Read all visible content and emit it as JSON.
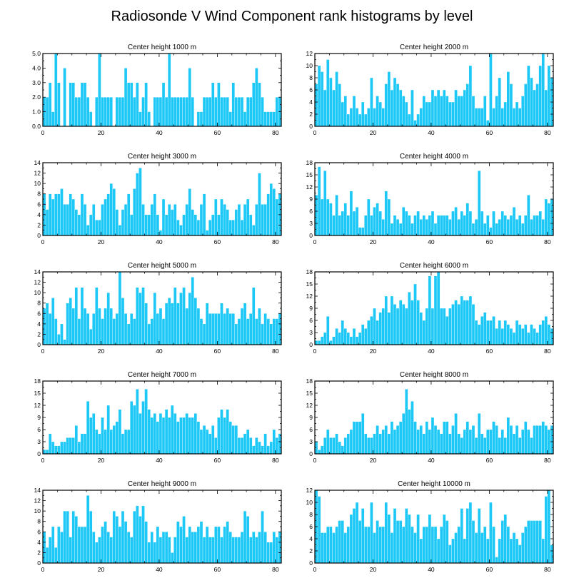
{
  "figure_title": "Radiosonde V Wind Component rank histograms by level",
  "colors": {
    "bar": "#1ec8f6",
    "frame": "#000000",
    "background": "#ffffff"
  },
  "chart_data": [
    {
      "type": "bar",
      "title": "Center height 1000 m",
      "xlim": [
        0,
        82
      ],
      "ylim": [
        0,
        5
      ],
      "xticks": [
        0,
        20,
        40,
        60,
        80
      ],
      "yticks": [
        0,
        1,
        2,
        3,
        4,
        5
      ],
      "ytick_labels": [
        "0.0",
        "1.0",
        "2.0",
        "3.0",
        "4.0",
        "5.0"
      ],
      "values": [
        2,
        2,
        3,
        1,
        5,
        3,
        0,
        4,
        0,
        3,
        3,
        2,
        2,
        3,
        3,
        2,
        1,
        0,
        2,
        5,
        2,
        2,
        2,
        2,
        0,
        2,
        2,
        2,
        4,
        3,
        3,
        2,
        3,
        1,
        2,
        3,
        1,
        0,
        2,
        2,
        2,
        3,
        2,
        5,
        2,
        2,
        2,
        2,
        2,
        2,
        4,
        2,
        0,
        1,
        1,
        2,
        2,
        2,
        3,
        2,
        3,
        2,
        2,
        2,
        1,
        3,
        2,
        2,
        2,
        1,
        2,
        2,
        3,
        4,
        3,
        2,
        1,
        1,
        1,
        1,
        2,
        2
      ]
    },
    {
      "type": "bar",
      "title": "Center height 2000 m",
      "xlim": [
        0,
        82
      ],
      "ylim": [
        0,
        12
      ],
      "xticks": [
        0,
        20,
        40,
        60,
        80
      ],
      "yticks": [
        0,
        2,
        4,
        6,
        8,
        10,
        12
      ],
      "ytick_labels": [
        "0",
        "2",
        "4",
        "6",
        "8",
        "10",
        "12"
      ],
      "values": [
        7,
        10,
        9,
        6,
        11,
        8,
        6,
        9,
        7,
        4,
        5,
        2,
        3,
        5,
        3,
        2,
        4,
        2,
        3,
        8,
        3,
        5,
        4,
        3,
        7,
        9,
        6,
        8,
        7,
        6,
        5,
        4,
        2,
        6,
        1,
        2,
        3,
        5,
        4,
        4,
        6,
        5,
        6,
        5,
        6,
        5,
        4,
        4,
        6,
        5,
        5,
        6,
        7,
        10,
        5,
        3,
        3,
        3,
        5,
        1,
        12,
        3,
        5,
        8,
        3,
        4,
        9,
        7,
        3,
        4,
        3,
        5,
        7,
        10,
        8,
        6,
        7,
        10,
        12,
        6,
        10,
        8
      ]
    },
    {
      "type": "bar",
      "title": "Center height 3000 m",
      "xlim": [
        0,
        82
      ],
      "ylim": [
        0,
        14
      ],
      "xticks": [
        0,
        20,
        40,
        60,
        80
      ],
      "yticks": [
        0,
        2,
        4,
        6,
        8,
        10,
        12,
        14
      ],
      "ytick_labels": [
        "0",
        "2",
        "4",
        "6",
        "8",
        "10",
        "12",
        "14"
      ],
      "values": [
        8,
        5,
        8,
        7,
        8,
        8,
        9,
        6,
        6,
        8,
        7,
        5,
        4,
        8,
        6,
        2,
        4,
        6,
        3,
        3,
        6,
        7,
        8,
        10,
        9,
        5,
        2,
        5,
        6,
        8,
        4,
        9,
        12,
        13,
        6,
        4,
        4,
        6,
        8,
        4,
        1,
        7,
        4,
        6,
        5,
        6,
        3,
        2,
        4,
        6,
        9,
        5,
        4,
        3,
        6,
        8,
        1,
        3,
        4,
        7,
        4,
        7,
        6,
        5,
        3,
        3,
        5,
        6,
        3,
        6,
        7,
        4,
        2,
        6,
        12,
        6,
        6,
        8,
        10,
        9,
        7,
        8
      ]
    },
    {
      "type": "bar",
      "title": "Center height 4000 m",
      "xlim": [
        0,
        82
      ],
      "ylim": [
        0,
        18
      ],
      "xticks": [
        0,
        20,
        40,
        60,
        80
      ],
      "yticks": [
        0,
        3,
        6,
        9,
        12,
        15,
        18
      ],
      "ytick_labels": [
        "0",
        "3",
        "6",
        "9",
        "12",
        "15",
        "18"
      ],
      "values": [
        10,
        17,
        9,
        16,
        9,
        8,
        5,
        10,
        5,
        6,
        8,
        5,
        11,
        6,
        7,
        2,
        2,
        5,
        9,
        5,
        7,
        8,
        6,
        4,
        11,
        9,
        3,
        5,
        4,
        3,
        7,
        6,
        5,
        3,
        5,
        6,
        4,
        5,
        4,
        5,
        6,
        3,
        5,
        5,
        5,
        5,
        4,
        6,
        7,
        4,
        6,
        5,
        8,
        6,
        3,
        4,
        16,
        6,
        3,
        5,
        2,
        6,
        3,
        4,
        6,
        5,
        4,
        5,
        7,
        4,
        5,
        3,
        5,
        10,
        4,
        5,
        5,
        6,
        4,
        9,
        8,
        9
      ]
    },
    {
      "type": "bar",
      "title": "Center height 5000 m",
      "xlim": [
        0,
        82
      ],
      "ylim": [
        0,
        14
      ],
      "xticks": [
        0,
        20,
        40,
        60,
        80
      ],
      "yticks": [
        0,
        2,
        4,
        6,
        8,
        10,
        12,
        14
      ],
      "ytick_labels": [
        "0",
        "2",
        "4",
        "6",
        "8",
        "10",
        "12",
        "14"
      ],
      "values": [
        7,
        8,
        6,
        9,
        5,
        2,
        4,
        1,
        8,
        9,
        7,
        11,
        5,
        11,
        7,
        6,
        3,
        6,
        11,
        7,
        5,
        7,
        10,
        7,
        5,
        6,
        14,
        9,
        6,
        4,
        6,
        5,
        11,
        10,
        11,
        8,
        4,
        5,
        10,
        6,
        7,
        5,
        8,
        9,
        8,
        11,
        8,
        10,
        11,
        7,
        10,
        13,
        9,
        7,
        5,
        4,
        8,
        6,
        6,
        6,
        6,
        8,
        6,
        7,
        6,
        6,
        4,
        5,
        7,
        8,
        5,
        6,
        11,
        5,
        7,
        4,
        6,
        5,
        4,
        5,
        5,
        6
      ]
    },
    {
      "type": "bar",
      "title": "Center height 6000 m",
      "xlim": [
        0,
        82
      ],
      "ylim": [
        0,
        18
      ],
      "xticks": [
        0,
        20,
        40,
        60,
        80
      ],
      "yticks": [
        0,
        3,
        6,
        9,
        12,
        15,
        18
      ],
      "ytick_labels": [
        "0",
        "3",
        "6",
        "9",
        "12",
        "15",
        "18"
      ],
      "values": [
        1,
        1,
        2,
        3,
        7,
        1,
        2,
        4,
        3,
        6,
        4,
        3,
        2,
        4,
        2,
        3,
        5,
        4,
        6,
        7,
        9,
        6,
        8,
        9,
        12,
        8,
        12,
        10,
        9,
        11,
        10,
        9,
        13,
        11,
        15,
        11,
        8,
        6,
        9,
        17,
        9,
        17,
        18,
        9,
        9,
        7,
        9,
        10,
        11,
        10,
        12,
        11,
        11,
        12,
        10,
        6,
        5,
        7,
        8,
        6,
        6,
        7,
        4,
        6,
        4,
        6,
        5,
        4,
        3,
        6,
        5,
        4,
        5,
        3,
        5,
        4,
        3,
        5,
        6,
        7,
        5,
        4
      ]
    },
    {
      "type": "bar",
      "title": "Center height 7000 m",
      "xlim": [
        0,
        82
      ],
      "ylim": [
        0,
        18
      ],
      "xticks": [
        0,
        20,
        40,
        60,
        80
      ],
      "yticks": [
        0,
        3,
        6,
        9,
        12,
        15,
        18
      ],
      "ytick_labels": [
        "0",
        "3",
        "6",
        "9",
        "12",
        "15",
        "18"
      ],
      "values": [
        1,
        1,
        5,
        3,
        2,
        2,
        3,
        3,
        4,
        4,
        4,
        7,
        3,
        5,
        5,
        13,
        9,
        10,
        6,
        5,
        9,
        6,
        12,
        6,
        7,
        8,
        11,
        5,
        6,
        6,
        13,
        12,
        16,
        10,
        13,
        16,
        11,
        9,
        10,
        8,
        10,
        9,
        11,
        9,
        12,
        10,
        8,
        9,
        9,
        10,
        9,
        9,
        10,
        8,
        6,
        7,
        6,
        5,
        7,
        4,
        9,
        11,
        9,
        11,
        8,
        7,
        7,
        4,
        4,
        5,
        6,
        4,
        2,
        4,
        3,
        2,
        5,
        2,
        3,
        6,
        4,
        5
      ]
    },
    {
      "type": "bar",
      "title": "Center height 8000 m",
      "xlim": [
        0,
        82
      ],
      "ylim": [
        0,
        18
      ],
      "xticks": [
        0,
        20,
        40,
        60,
        80
      ],
      "yticks": [
        0,
        3,
        6,
        9,
        12,
        15,
        18
      ],
      "ytick_labels": [
        "0",
        "3",
        "6",
        "9",
        "12",
        "15",
        "18"
      ],
      "values": [
        3,
        1,
        2,
        4,
        6,
        4,
        4,
        5,
        3,
        2,
        4,
        5,
        6,
        8,
        8,
        8,
        10,
        5,
        4,
        4,
        5,
        7,
        5,
        6,
        7,
        5,
        8,
        6,
        7,
        8,
        10,
        16,
        11,
        13,
        8,
        6,
        7,
        5,
        8,
        6,
        9,
        7,
        6,
        5,
        8,
        8,
        5,
        7,
        10,
        5,
        4,
        6,
        8,
        6,
        7,
        4,
        10,
        5,
        4,
        6,
        6,
        8,
        7,
        4,
        6,
        4,
        9,
        7,
        5,
        7,
        4,
        6,
        8,
        6,
        4,
        7,
        7,
        7,
        8,
        7,
        6,
        7
      ]
    },
    {
      "type": "bar",
      "title": "Center height 9000 m",
      "xlim": [
        0,
        82
      ],
      "ylim": [
        0,
        14
      ],
      "xticks": [
        0,
        20,
        40,
        60,
        80
      ],
      "yticks": [
        0,
        2,
        4,
        6,
        8,
        10,
        12,
        14
      ],
      "ytick_labels": [
        "0",
        "2",
        "4",
        "6",
        "8",
        "10",
        "12",
        "14"
      ],
      "values": [
        6,
        3,
        5,
        7,
        3,
        7,
        6,
        10,
        10,
        5,
        10,
        9,
        7,
        7,
        7,
        13,
        10,
        6,
        4,
        5,
        7,
        8,
        6,
        5,
        10,
        9,
        7,
        10,
        8,
        6,
        5,
        10,
        11,
        9,
        11,
        8,
        4,
        6,
        4,
        7,
        5,
        6,
        6,
        5,
        2,
        5,
        8,
        7,
        9,
        5,
        7,
        6,
        6,
        7,
        8,
        5,
        7,
        5,
        5,
        7,
        7,
        5,
        7,
        8,
        6,
        5,
        5,
        5,
        6,
        10,
        9,
        5,
        6,
        5,
        6,
        10,
        6,
        4,
        4,
        6,
        5,
        6
      ]
    },
    {
      "type": "bar",
      "title": "Center height 10000 m",
      "xlim": [
        0,
        82
      ],
      "ylim": [
        0,
        12
      ],
      "xticks": [
        0,
        20,
        40,
        60,
        80
      ],
      "yticks": [
        0,
        2,
        4,
        6,
        8,
        10,
        12
      ],
      "ytick_labels": [
        "0",
        "2",
        "4",
        "6",
        "8",
        "10",
        "12"
      ],
      "values": [
        12,
        11,
        5,
        5,
        6,
        6,
        5,
        6,
        7,
        7,
        5,
        6,
        8,
        9,
        10,
        7,
        9,
        6,
        6,
        10,
        5,
        7,
        6,
        6,
        10,
        8,
        5,
        9,
        7,
        7,
        6,
        9,
        8,
        6,
        5,
        8,
        4,
        6,
        6,
        8,
        6,
        6,
        4,
        6,
        8,
        7,
        3,
        4,
        5,
        6,
        9,
        4,
        9,
        10,
        7,
        5,
        9,
        5,
        6,
        4,
        10,
        6,
        1,
        4,
        7,
        8,
        6,
        4,
        5,
        4,
        3,
        5,
        6,
        7,
        7,
        7,
        7,
        7,
        4,
        11,
        12,
        3
      ]
    }
  ]
}
